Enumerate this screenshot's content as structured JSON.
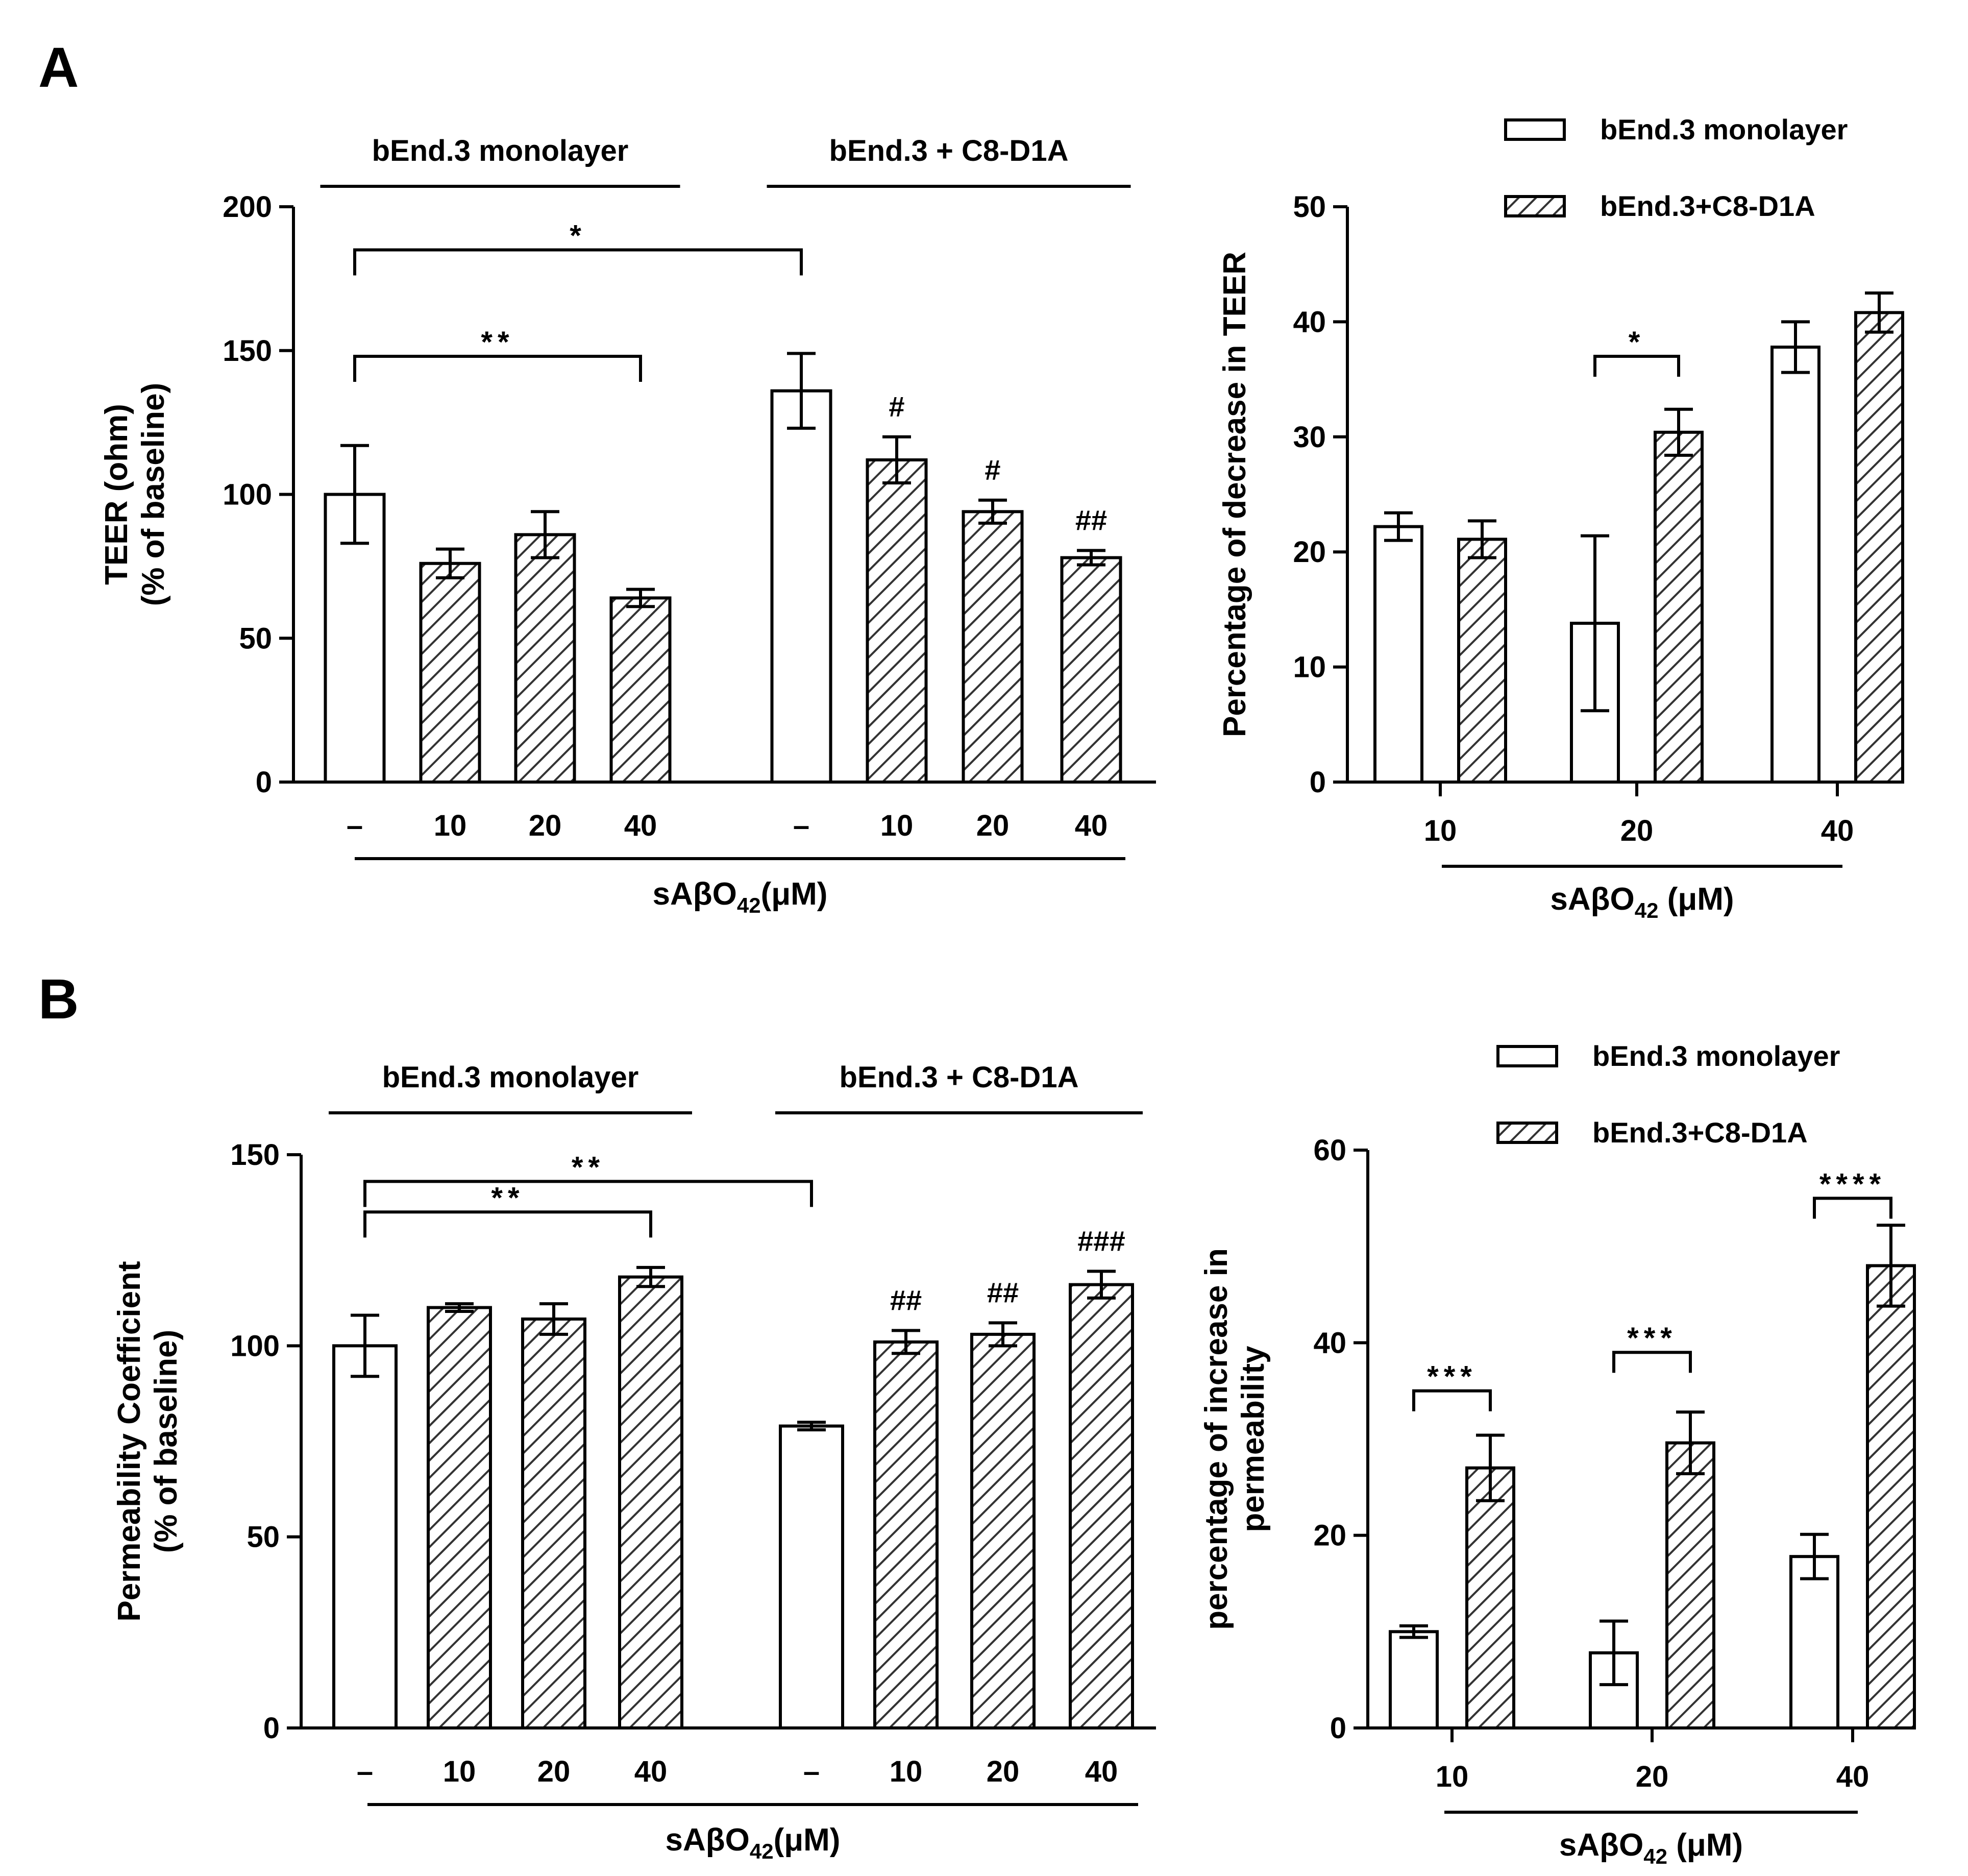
{
  "colors": {
    "ink": "#000000",
    "paper": "#ffffff",
    "hatch": "#333333"
  },
  "panel_labels": [
    "A",
    "B"
  ],
  "chart_data": [
    {
      "id": "A-left",
      "type": "bar",
      "panel": "A",
      "ylabel": [
        "TEER (ohm)",
        "(% of baseline)"
      ],
      "ylim": [
        0,
        200
      ],
      "yticks": [
        0,
        50,
        100,
        150,
        200
      ],
      "group_labels": [
        "bEnd.3 monolayer",
        "bEnd.3 + C8-D1A"
      ],
      "xlabel": {
        "main": "sAβO",
        "sub": "42",
        "tail": "(μM)"
      },
      "bars": [
        {
          "group": 0,
          "label": "–",
          "value": 100,
          "err": 17,
          "pattern": "open"
        },
        {
          "group": 0,
          "label": "10",
          "value": 76,
          "err": 5,
          "pattern": "hatch"
        },
        {
          "group": 0,
          "label": "20",
          "value": 86,
          "err": 8,
          "pattern": "hatch"
        },
        {
          "group": 0,
          "label": "40",
          "value": 64,
          "err": 3,
          "pattern": "hatch"
        },
        {
          "group": 1,
          "label": "–",
          "value": 136,
          "err": 13,
          "pattern": "open"
        },
        {
          "group": 1,
          "label": "10",
          "value": 112,
          "err": 8,
          "pattern": "hatch",
          "mark": "#"
        },
        {
          "group": 1,
          "label": "20",
          "value": 94,
          "err": 4,
          "pattern": "hatch",
          "mark": "#"
        },
        {
          "group": 1,
          "label": "40",
          "value": 78,
          "err": 2.5,
          "pattern": "hatch",
          "mark": "##"
        }
      ],
      "brackets": [
        {
          "from": 0,
          "to": 4,
          "y": 185,
          "label": "*"
        },
        {
          "from": 0,
          "to": 3,
          "y": 148,
          "label": "**"
        }
      ]
    },
    {
      "id": "A-right",
      "type": "bar",
      "panel": "A",
      "ylabel": [
        "Percentage of decrease in TEER"
      ],
      "ylim": [
        0,
        50
      ],
      "yticks": [
        0,
        10,
        20,
        30,
        40,
        50
      ],
      "categories": [
        "10",
        "20",
        "40"
      ],
      "series": [
        {
          "name": "bEnd.3 monolayer",
          "pattern": "open",
          "values": [
            22.2,
            13.8,
            37.8
          ],
          "errors": [
            1.2,
            7.6,
            2.2
          ]
        },
        {
          "name": "bEnd.3+C8-D1A",
          "pattern": "hatch",
          "values": [
            21.1,
            30.4,
            40.8
          ],
          "errors": [
            1.6,
            2.0,
            1.7
          ]
        }
      ],
      "xlabel": {
        "main": "sAβO",
        "sub": "42",
        "tail": " (μM)"
      },
      "brackets": [
        {
          "category": 1,
          "y": 37,
          "label": "*"
        }
      ]
    },
    {
      "id": "B-left",
      "type": "bar",
      "panel": "B",
      "ylabel": [
        "Permeability Coefficient",
        "(% of baseline)"
      ],
      "ylim": [
        0,
        150
      ],
      "yticks": [
        0,
        50,
        100,
        150
      ],
      "group_labels": [
        "bEnd.3 monolayer",
        "bEnd.3 + C8-D1A"
      ],
      "xlabel": {
        "main": "sAβO",
        "sub": "42",
        "tail": "(μM)"
      },
      "bars": [
        {
          "group": 0,
          "label": "–",
          "value": 100,
          "err": 8,
          "pattern": "open"
        },
        {
          "group": 0,
          "label": "10",
          "value": 110,
          "err": 1,
          "pattern": "hatch"
        },
        {
          "group": 0,
          "label": "20",
          "value": 107,
          "err": 4,
          "pattern": "hatch"
        },
        {
          "group": 0,
          "label": "40",
          "value": 118,
          "err": 2.5,
          "pattern": "hatch"
        },
        {
          "group": 1,
          "label": "–",
          "value": 79,
          "err": 1,
          "pattern": "open"
        },
        {
          "group": 1,
          "label": "10",
          "value": 101,
          "err": 3,
          "pattern": "hatch",
          "mark": "##"
        },
        {
          "group": 1,
          "label": "20",
          "value": 103,
          "err": 3,
          "pattern": "hatch",
          "mark": "##"
        },
        {
          "group": 1,
          "label": "40",
          "value": 116,
          "err": 3.5,
          "pattern": "hatch",
          "mark": "###"
        }
      ],
      "brackets": [
        {
          "from": 0,
          "to": 4,
          "y": 143,
          "label": "**"
        },
        {
          "from": 0,
          "to": 3,
          "y": 135,
          "label": "**"
        }
      ]
    },
    {
      "id": "B-right",
      "type": "bar",
      "panel": "B",
      "ylabel": [
        "percentage of increase in",
        "permeability"
      ],
      "ylim": [
        0,
        60
      ],
      "yticks": [
        0,
        20,
        40,
        60
      ],
      "categories": [
        "10",
        "20",
        "40"
      ],
      "series": [
        {
          "name": "bEnd.3 monolayer",
          "pattern": "open",
          "values": [
            10,
            7.8,
            17.8
          ],
          "errors": [
            0.6,
            3.3,
            2.3
          ]
        },
        {
          "name": "bEnd.3+C8-D1A",
          "pattern": "hatch",
          "values": [
            27,
            29.6,
            48
          ],
          "errors": [
            3.4,
            3.2,
            4.2
          ]
        }
      ],
      "xlabel": {
        "main": "sAβO",
        "sub": "42",
        "tail": " (μM)"
      },
      "brackets": [
        {
          "category": 0,
          "y": 35,
          "label": "***"
        },
        {
          "category": 1,
          "y": 39,
          "label": "***"
        },
        {
          "category": 2,
          "y": 55,
          "label": "****"
        }
      ]
    }
  ]
}
